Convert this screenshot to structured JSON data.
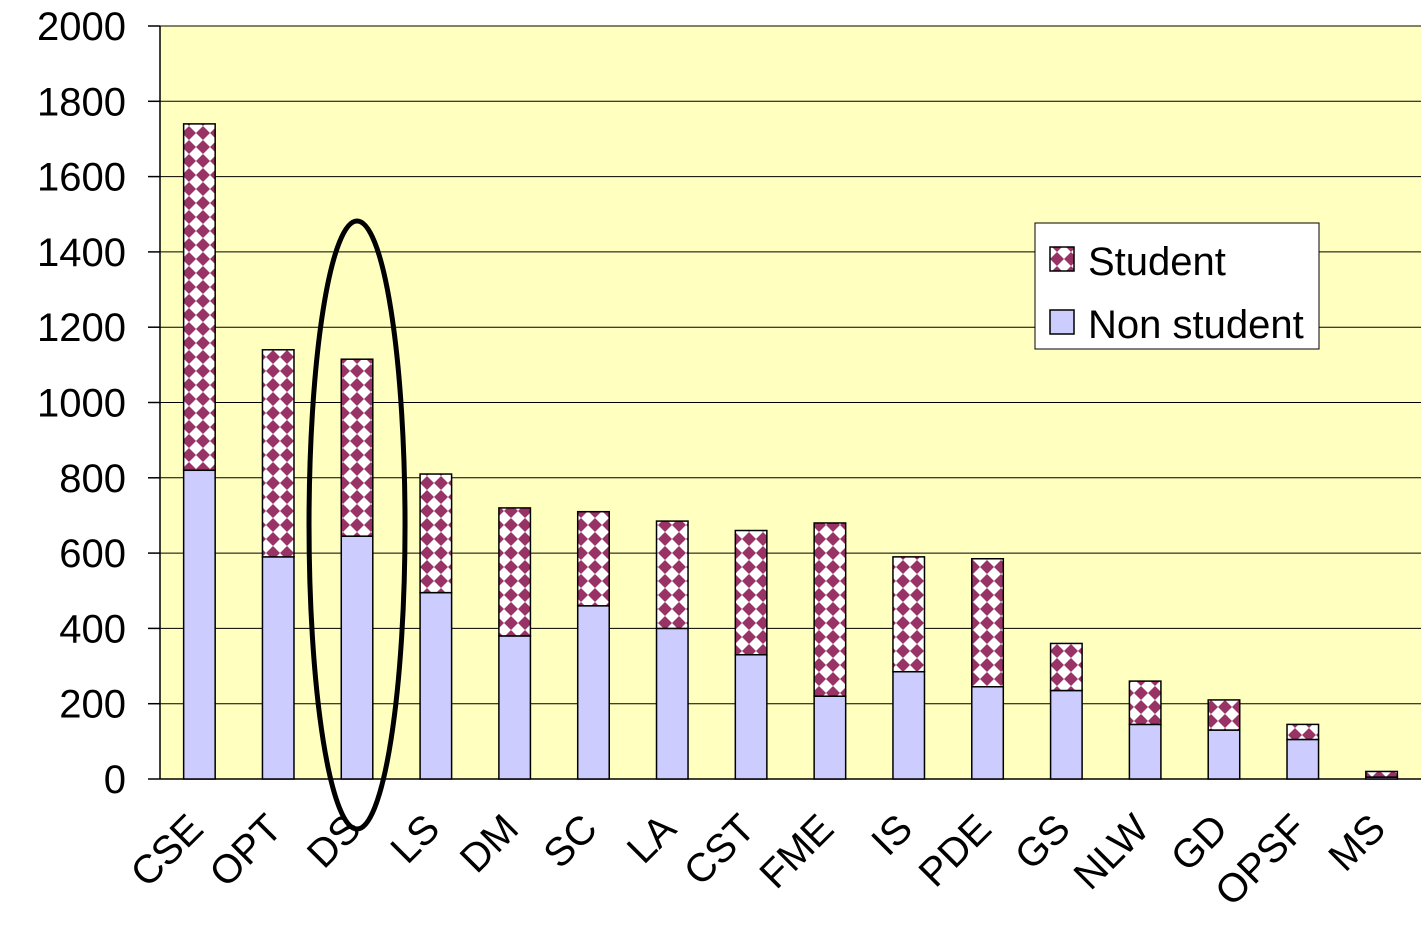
{
  "chart_data": {
    "type": "bar",
    "stacked": true,
    "categories": [
      "CSE",
      "OPT",
      "DS",
      "LS",
      "DM",
      "SC",
      "LA",
      "CST",
      "FME",
      "IS",
      "PDE",
      "GS",
      "NLW",
      "GD",
      "OPSF",
      "MS"
    ],
    "series": [
      {
        "name": "Non student",
        "color": "#ccccff",
        "pattern": "solid",
        "values": [
          820,
          590,
          645,
          495,
          380,
          460,
          400,
          330,
          220,
          285,
          245,
          235,
          145,
          130,
          105,
          5
        ]
      },
      {
        "name": "Student",
        "color": "#993366",
        "pattern": "checker",
        "values": [
          920,
          550,
          470,
          315,
          340,
          250,
          285,
          330,
          460,
          305,
          340,
          125,
          115,
          80,
          40,
          15
        ]
      }
    ],
    "ylim": [
      0,
      2000
    ],
    "yticks": [
      "0",
      "200",
      "400",
      "600",
      "800",
      "1000",
      "1200",
      "1400",
      "1600",
      "1800",
      "2000"
    ],
    "grid": true,
    "background": "#ffffc0",
    "legend": {
      "placement": "right",
      "entries": [
        "Student",
        "Non student"
      ]
    },
    "highlight": {
      "shape": "ellipse",
      "category": "DS"
    },
    "title": "",
    "xlabel": "",
    "ylabel": ""
  }
}
